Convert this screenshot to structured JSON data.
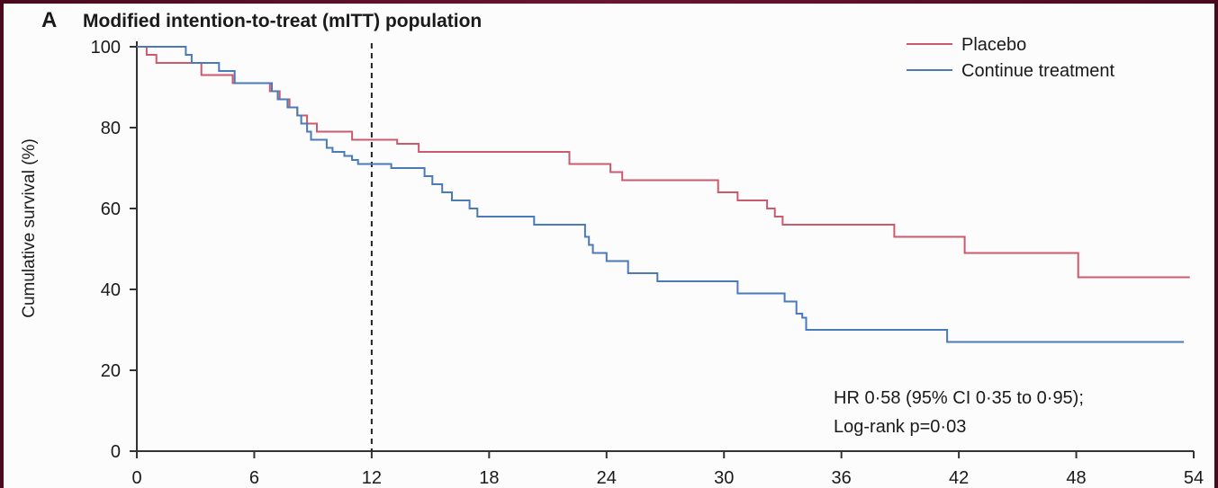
{
  "chart_data": {
    "type": "line",
    "panel_label": "A",
    "title": "Modified intention-to-treat (mITT) population",
    "xlabel": "",
    "ylabel": "Cumulative survival (%)",
    "xlim": [
      0,
      54
    ],
    "ylim": [
      0,
      100
    ],
    "xticks": [
      0,
      6,
      12,
      18,
      24,
      30,
      36,
      42,
      48,
      54
    ],
    "yticks": [
      0,
      20,
      40,
      60,
      80,
      100
    ],
    "reference_line_x": 12,
    "legend_position": "top-right",
    "series": [
      {
        "name": "Placebo",
        "color": "#cc5a6e",
        "step": true,
        "points": [
          [
            0,
            100
          ],
          [
            0.5,
            98
          ],
          [
            1,
            96
          ],
          [
            3.2,
            96
          ],
          [
            3.3,
            93
          ],
          [
            4.8,
            93
          ],
          [
            4.9,
            91
          ],
          [
            6.6,
            91
          ],
          [
            6.8,
            89
          ],
          [
            7.3,
            87
          ],
          [
            7.8,
            85
          ],
          [
            8.2,
            83
          ],
          [
            8.7,
            81
          ],
          [
            9.2,
            79
          ],
          [
            10.9,
            79
          ],
          [
            11,
            77
          ],
          [
            13.2,
            77
          ],
          [
            13.3,
            76
          ],
          [
            14.3,
            76
          ],
          [
            14.4,
            74
          ],
          [
            22,
            74
          ],
          [
            22.1,
            71
          ],
          [
            24.1,
            71
          ],
          [
            24.2,
            69
          ],
          [
            24.7,
            69
          ],
          [
            24.8,
            67
          ],
          [
            29.6,
            67
          ],
          [
            29.7,
            64
          ],
          [
            30.6,
            64
          ],
          [
            30.7,
            62
          ],
          [
            32.1,
            62
          ],
          [
            32.2,
            60
          ],
          [
            32.5,
            60
          ],
          [
            32.6,
            58
          ],
          [
            32.9,
            58
          ],
          [
            33,
            56
          ],
          [
            38.6,
            56
          ],
          [
            38.7,
            53
          ],
          [
            42.2,
            53
          ],
          [
            42.3,
            49
          ],
          [
            48,
            49
          ],
          [
            48.1,
            43
          ],
          [
            53.8,
            43
          ]
        ]
      },
      {
        "name": "Continue treatment",
        "color": "#4a7ab8",
        "step": true,
        "points": [
          [
            0,
            100
          ],
          [
            2.4,
            100
          ],
          [
            2.5,
            98
          ],
          [
            2.8,
            96
          ],
          [
            4.1,
            96
          ],
          [
            4.2,
            94
          ],
          [
            4.9,
            94
          ],
          [
            5,
            91
          ],
          [
            6.6,
            91
          ],
          [
            6.9,
            89
          ],
          [
            7.2,
            87
          ],
          [
            7.7,
            85
          ],
          [
            8.2,
            83
          ],
          [
            8.4,
            81
          ],
          [
            8.7,
            79
          ],
          [
            8.9,
            77
          ],
          [
            9.6,
            77
          ],
          [
            9.7,
            75
          ],
          [
            10,
            74
          ],
          [
            10.6,
            73
          ],
          [
            11,
            72
          ],
          [
            11.3,
            71
          ],
          [
            12.9,
            71
          ],
          [
            13,
            70
          ],
          [
            14.6,
            70
          ],
          [
            14.7,
            68
          ],
          [
            15.1,
            66
          ],
          [
            15.6,
            64
          ],
          [
            16.1,
            62
          ],
          [
            17,
            60
          ],
          [
            17.4,
            58
          ],
          [
            20.2,
            58
          ],
          [
            20.3,
            56
          ],
          [
            22.8,
            56
          ],
          [
            22.9,
            53
          ],
          [
            23.1,
            51
          ],
          [
            23.3,
            49
          ],
          [
            23.9,
            49
          ],
          [
            24,
            47
          ],
          [
            25,
            47
          ],
          [
            25.1,
            44
          ],
          [
            26.5,
            44
          ],
          [
            26.6,
            42
          ],
          [
            30.6,
            42
          ],
          [
            30.7,
            39
          ],
          [
            33,
            39
          ],
          [
            33.1,
            37
          ],
          [
            33.6,
            37
          ],
          [
            33.7,
            34
          ],
          [
            34,
            33
          ],
          [
            34.2,
            30
          ],
          [
            41.3,
            30
          ],
          [
            41.4,
            27
          ],
          [
            53.5,
            27
          ]
        ]
      }
    ],
    "annotations": [
      "HR 0·58 (95% CI 0·35 to 0·95);",
      "Log-rank p=0·03"
    ]
  }
}
